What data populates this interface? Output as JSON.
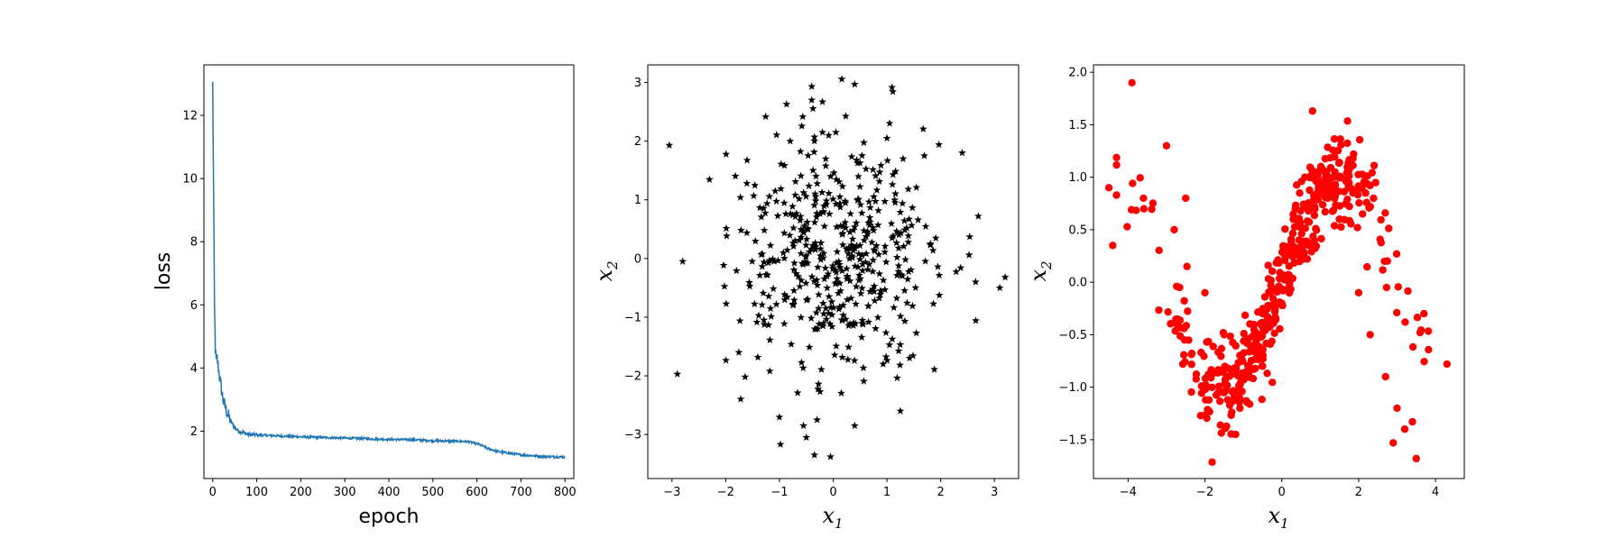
{
  "chart_data": [
    {
      "type": "line",
      "xlabel": "epoch",
      "ylabel": "loss",
      "xlim": [
        -20,
        820
      ],
      "ylim": [
        0.5,
        13.6
      ],
      "xticks": [
        0,
        100,
        200,
        300,
        400,
        500,
        600,
        700,
        800
      ],
      "yticks": [
        2,
        4,
        6,
        8,
        10,
        12
      ],
      "color": "#1f77b4",
      "grid": false,
      "series": [
        {
          "x": [
            0,
            2,
            4,
            6,
            8,
            10,
            15,
            20,
            25,
            30,
            35,
            40,
            50,
            60,
            70,
            80,
            100,
            150,
            200,
            250,
            300,
            350,
            400,
            450,
            500,
            550,
            580,
            600,
            610,
            625,
            650,
            700,
            750,
            800
          ],
          "values": [
            13.0,
            9.5,
            6.0,
            4.6,
            4.2,
            4.3,
            3.8,
            3.3,
            2.9,
            2.7,
            2.5,
            2.35,
            2.1,
            2.0,
            1.95,
            1.9,
            1.88,
            1.85,
            1.82,
            1.8,
            1.78,
            1.76,
            1.74,
            1.73,
            1.7,
            1.68,
            1.67,
            1.6,
            1.55,
            1.45,
            1.35,
            1.25,
            1.2,
            1.18
          ]
        }
      ]
    },
    {
      "type": "scatter",
      "xlabel": "x",
      "xlabel_sub": "1",
      "ylabel": "x",
      "ylabel_sub": "2",
      "xlim": [
        -3.45,
        3.45
      ],
      "ylim": [
        -3.75,
        3.3
      ],
      "xticks": [
        -3,
        -2,
        -1,
        0,
        1,
        2,
        3
      ],
      "yticks": [
        -3,
        -2,
        -1,
        0,
        1,
        2,
        3
      ],
      "marker": "star",
      "color": "#000000",
      "grid": false,
      "points": {
        "x": [
          -3.05,
          0.4,
          -0.4,
          -0.4,
          -0.2,
          -0.35,
          -0.35,
          -0.2,
          1.0,
          2.4,
          -0.3,
          -2.9,
          -2.8,
          3.2,
          3.1,
          2.65,
          2.7,
          -0.5,
          0.4,
          -0.35,
          -0.05,
          0.05,
          -0.8,
          1.3,
          1.25
        ],
        "y": [
          1.93,
          2.97,
          2.93,
          2.7,
          2.67,
          2.07,
          2.0,
          2.15,
          2.05,
          1.8,
          -2.75,
          -1.97,
          -0.05,
          -0.32,
          -0.5,
          -0.4,
          0.72,
          -3.05,
          -2.85,
          -3.35,
          -3.38,
          2.15,
          2.0,
          1.7,
          -2.6
        ]
      },
      "n_points_approx": 500,
      "distribution": "standard normal cloud centered at (0, 0)"
    },
    {
      "type": "scatter",
      "xlabel": "x",
      "xlabel_sub": "1",
      "ylabel": "x",
      "ylabel_sub": "2",
      "xlim": [
        -4.9,
        4.75
      ],
      "ylim": [
        -1.87,
        2.07
      ],
      "xticks": [
        -4,
        -2,
        0,
        2,
        4
      ],
      "yticks": [
        -1.5,
        -1.0,
        -0.5,
        0.0,
        0.5,
        1.0,
        1.5,
        2.0
      ],
      "marker": "circle",
      "color": "#ff0000",
      "grid": false,
      "points": {
        "x": [
          -3.9,
          -4.5,
          -4.4,
          -3.6,
          -3.0,
          -2.8,
          -2.5,
          -2.0,
          -1.5,
          -1.2,
          -1.0,
          -0.5,
          0.0,
          0.3,
          0.6,
          0.8,
          1.2,
          1.5,
          2.0,
          2.3,
          2.7,
          3.0,
          3.2,
          3.5,
          3.7,
          4.3,
          3.6,
          3.4,
          2.9
        ],
        "y": [
          1.9,
          0.9,
          0.35,
          0.8,
          1.3,
          0.5,
          0.8,
          -0.1,
          -0.5,
          -1.45,
          -0.9,
          -0.8,
          -0.2,
          0.6,
          1.0,
          1.63,
          0.8,
          0.6,
          -0.1,
          -0.5,
          -0.9,
          -1.2,
          -1.4,
          -1.68,
          -0.3,
          -0.78,
          -0.48,
          -1.33,
          -1.53
        ]
      },
      "n_points_approx": 500,
      "distribution": "noisy sine curve x2 ≈ sin(x1)"
    }
  ]
}
